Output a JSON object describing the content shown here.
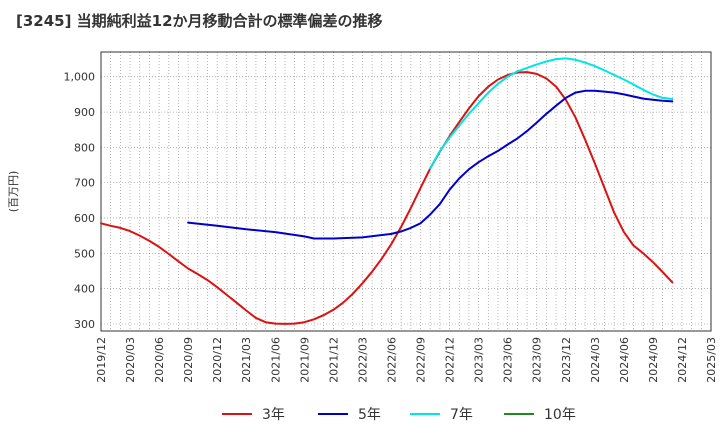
{
  "chart_data": {
    "type": "line",
    "title": "[3245]  当期純利益12か月移動合計の標準偏差の推移",
    "ylabel": "(百万円)",
    "ylim": [
      280,
      1070
    ],
    "yticks": [
      300,
      400,
      500,
      600,
      700,
      800,
      900,
      1000
    ],
    "ytick_labels": [
      "300",
      "400",
      "500",
      "600",
      "700",
      "800",
      "900",
      "1,000"
    ],
    "xlim": [
      "2019-12",
      "2025-03"
    ],
    "xtick_labels": [
      "2019/12",
      "2020/03",
      "2020/06",
      "2020/09",
      "2020/12",
      "2021/03",
      "2021/06",
      "2021/09",
      "2021/12",
      "2022/03",
      "2022/06",
      "2022/09",
      "2022/12",
      "2023/03",
      "2023/06",
      "2023/09",
      "2023/12",
      "2024/03",
      "2024/06",
      "2024/09",
      "2024/12",
      "2025/03"
    ],
    "grid": true,
    "legend_position": "bottom",
    "series": [
      {
        "name": "3年",
        "color": "#dd1111",
        "points": [
          [
            "2019-12",
            585
          ],
          [
            "2020-01",
            578
          ],
          [
            "2020-02",
            572
          ],
          [
            "2020-03",
            563
          ],
          [
            "2020-04",
            550
          ],
          [
            "2020-05",
            535
          ],
          [
            "2020-06",
            518
          ],
          [
            "2020-07",
            498
          ],
          [
            "2020-08",
            477
          ],
          [
            "2020-09",
            457
          ],
          [
            "2020-10",
            441
          ],
          [
            "2020-11",
            424
          ],
          [
            "2020-12",
            404
          ],
          [
            "2021-01",
            382
          ],
          [
            "2021-02",
            360
          ],
          [
            "2021-03",
            338
          ],
          [
            "2021-04",
            317
          ],
          [
            "2021-05",
            305
          ],
          [
            "2021-06",
            301
          ],
          [
            "2021-07",
            300
          ],
          [
            "2021-08",
            301
          ],
          [
            "2021-09",
            305
          ],
          [
            "2021-10",
            313
          ],
          [
            "2021-11",
            325
          ],
          [
            "2021-12",
            340
          ],
          [
            "2022-01",
            360
          ],
          [
            "2022-02",
            385
          ],
          [
            "2022-03",
            415
          ],
          [
            "2022-04",
            448
          ],
          [
            "2022-05",
            485
          ],
          [
            "2022-06",
            527
          ],
          [
            "2022-07",
            575
          ],
          [
            "2022-08",
            628
          ],
          [
            "2022-09",
            685
          ],
          [
            "2022-10",
            740
          ],
          [
            "2022-11",
            788
          ],
          [
            "2022-12",
            832
          ],
          [
            "2023-01",
            872
          ],
          [
            "2023-02",
            910
          ],
          [
            "2023-03",
            945
          ],
          [
            "2023-04",
            972
          ],
          [
            "2023-05",
            992
          ],
          [
            "2023-06",
            1005
          ],
          [
            "2023-07",
            1012
          ],
          [
            "2023-08",
            1013
          ],
          [
            "2023-09",
            1008
          ],
          [
            "2023-10",
            995
          ],
          [
            "2023-11",
            972
          ],
          [
            "2023-12",
            935
          ],
          [
            "2024-01",
            885
          ],
          [
            "2024-02",
            822
          ],
          [
            "2024-03",
            755
          ],
          [
            "2024-04",
            685
          ],
          [
            "2024-05",
            615
          ],
          [
            "2024-06",
            560
          ],
          [
            "2024-07",
            522
          ],
          [
            "2024-08",
            500
          ],
          [
            "2024-09",
            475
          ],
          [
            "2024-10",
            447
          ],
          [
            "2024-11",
            418
          ]
        ]
      },
      {
        "name": "5年",
        "color": "#0000cc",
        "points": [
          [
            "2020-09",
            587
          ],
          [
            "2020-12",
            578
          ],
          [
            "2021-03",
            568
          ],
          [
            "2021-06",
            560
          ],
          [
            "2021-09",
            548
          ],
          [
            "2021-10",
            542
          ],
          [
            "2021-12",
            542
          ],
          [
            "2022-03",
            545
          ],
          [
            "2022-06",
            555
          ],
          [
            "2022-07",
            562
          ],
          [
            "2022-08",
            572
          ],
          [
            "2022-09",
            585
          ],
          [
            "2022-10",
            610
          ],
          [
            "2022-11",
            640
          ],
          [
            "2022-12",
            680
          ],
          [
            "2023-01",
            712
          ],
          [
            "2023-02",
            738
          ],
          [
            "2023-03",
            758
          ],
          [
            "2023-04",
            775
          ],
          [
            "2023-05",
            790
          ],
          [
            "2023-06",
            808
          ],
          [
            "2023-07",
            825
          ],
          [
            "2023-08",
            846
          ],
          [
            "2023-09",
            870
          ],
          [
            "2023-10",
            895
          ],
          [
            "2023-11",
            918
          ],
          [
            "2023-12",
            940
          ],
          [
            "2024-01",
            955
          ],
          [
            "2024-02",
            960
          ],
          [
            "2024-03",
            960
          ],
          [
            "2024-04",
            958
          ],
          [
            "2024-05",
            955
          ],
          [
            "2024-06",
            950
          ],
          [
            "2024-07",
            944
          ],
          [
            "2024-08",
            938
          ],
          [
            "2024-09",
            935
          ],
          [
            "2024-10",
            932
          ],
          [
            "2024-11",
            930
          ]
        ]
      },
      {
        "name": "7年",
        "color": "#00e5e5",
        "points": [
          [
            "2022-10",
            740
          ],
          [
            "2022-11",
            790
          ],
          [
            "2022-12",
            828
          ],
          [
            "2023-01",
            862
          ],
          [
            "2023-02",
            895
          ],
          [
            "2023-03",
            925
          ],
          [
            "2023-04",
            955
          ],
          [
            "2023-05",
            980
          ],
          [
            "2023-06",
            1000
          ],
          [
            "2023-07",
            1015
          ],
          [
            "2023-08",
            1025
          ],
          [
            "2023-09",
            1035
          ],
          [
            "2023-10",
            1043
          ],
          [
            "2023-11",
            1050
          ],
          [
            "2023-12",
            1052
          ],
          [
            "2024-01",
            1048
          ],
          [
            "2024-02",
            1040
          ],
          [
            "2024-03",
            1030
          ],
          [
            "2024-04",
            1018
          ],
          [
            "2024-05",
            1005
          ],
          [
            "2024-06",
            992
          ],
          [
            "2024-07",
            978
          ],
          [
            "2024-08",
            963
          ],
          [
            "2024-09",
            950
          ],
          [
            "2024-10",
            940
          ],
          [
            "2024-11",
            937
          ]
        ]
      },
      {
        "name": "10年",
        "color": "#228822",
        "points": []
      }
    ]
  }
}
